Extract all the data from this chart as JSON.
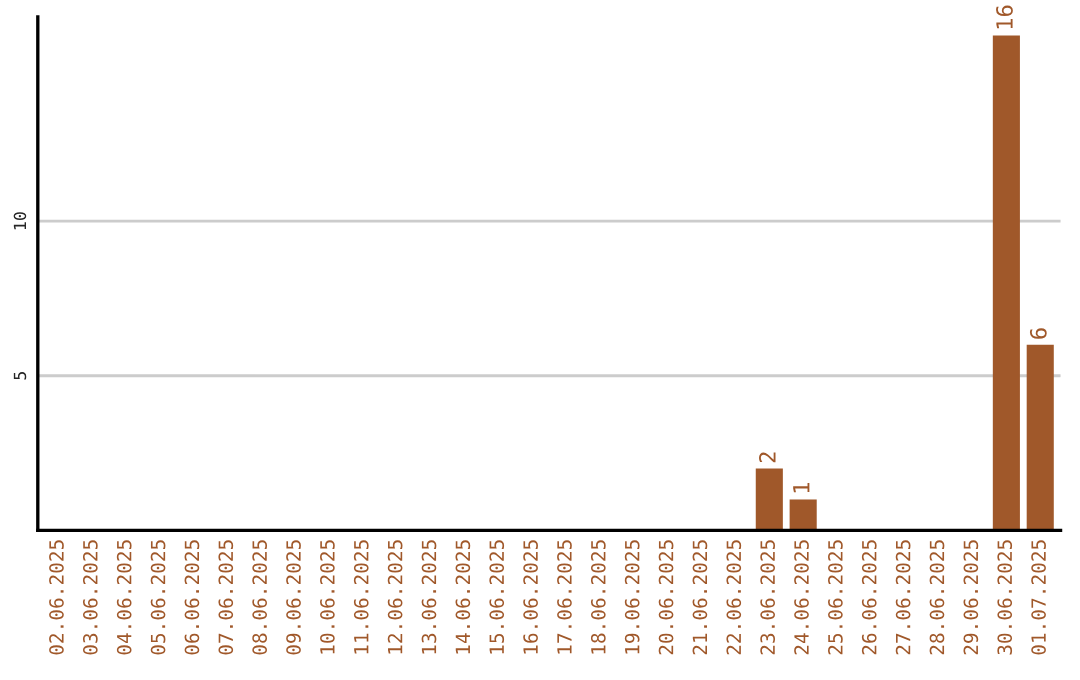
{
  "chart_data": {
    "type": "bar",
    "categories": [
      "02.06.2025",
      "03.06.2025",
      "04.06.2025",
      "05.06.2025",
      "06.06.2025",
      "07.06.2025",
      "08.06.2025",
      "09.06.2025",
      "10.06.2025",
      "11.06.2025",
      "12.06.2025",
      "13.06.2025",
      "14.06.2025",
      "15.06.2025",
      "16.06.2025",
      "17.06.2025",
      "18.06.2025",
      "19.06.2025",
      "20.06.2025",
      "21.06.2025",
      "22.06.2025",
      "23.06.2025",
      "24.06.2025",
      "25.06.2025",
      "26.06.2025",
      "27.06.2025",
      "28.06.2025",
      "29.06.2025",
      "30.06.2025",
      "01.07.2025"
    ],
    "values": [
      0,
      0,
      0,
      0,
      0,
      0,
      0,
      0,
      0,
      0,
      0,
      0,
      0,
      0,
      0,
      0,
      0,
      0,
      0,
      0,
      0,
      2,
      1,
      0,
      0,
      0,
      0,
      0,
      16,
      6
    ],
    "value_labels": [
      null,
      null,
      null,
      null,
      null,
      null,
      null,
      null,
      null,
      null,
      null,
      null,
      null,
      null,
      null,
      null,
      null,
      null,
      null,
      null,
      null,
      "2",
      "1",
      null,
      null,
      null,
      null,
      null,
      "16",
      "6"
    ],
    "color": "#a0582a",
    "ylim": [
      0,
      16.6
    ],
    "yticks": [
      5,
      10
    ],
    "grid": "y",
    "legend": false
  }
}
